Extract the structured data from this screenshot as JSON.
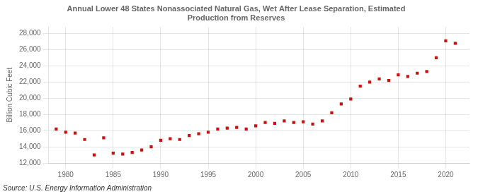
{
  "chart_data": {
    "type": "scatter",
    "title": [
      "Annual Lower 48 States Nonassociated Natural Gas, Wet After Lease Separation, Estimated",
      "Production from Reserves"
    ],
    "ylabel": "Billion Cubic Feet",
    "source": "Source: U.S. Energy Information Administration",
    "x": [
      1979,
      1980,
      1981,
      1982,
      1983,
      1984,
      1985,
      1986,
      1987,
      1988,
      1989,
      1990,
      1991,
      1992,
      1993,
      1994,
      1995,
      1996,
      1997,
      1998,
      1999,
      2000,
      2001,
      2002,
      2003,
      2004,
      2005,
      2006,
      2007,
      2008,
      2009,
      2010,
      2011,
      2012,
      2013,
      2014,
      2015,
      2016,
      2017,
      2018,
      2019,
      2020,
      2021
    ],
    "values": [
      16200,
      15800,
      15700,
      14900,
      13000,
      15100,
      13200,
      13100,
      13300,
      13600,
      14000,
      14800,
      15000,
      14900,
      15400,
      15600,
      15800,
      16200,
      16300,
      16400,
      16200,
      16600,
      17000,
      16900,
      17200,
      17000,
      17100,
      16800,
      17200,
      18200,
      19300,
      19900,
      21500,
      22000,
      22400,
      22200,
      22900,
      22700,
      23100,
      23300,
      25000,
      27100,
      26800
    ],
    "color": "#cc1111",
    "marker": "square",
    "xlim": [
      1978.2,
      2022.5
    ],
    "xticks": [
      1980,
      1985,
      1990,
      1995,
      2000,
      2005,
      2010,
      2015,
      2020
    ],
    "ylim": [
      12000,
      28800
    ],
    "yticks": [
      {
        "value": 12000,
        "label": "12,000"
      },
      {
        "value": 14000,
        "label": "14,000"
      },
      {
        "value": 16000,
        "label": "16,000"
      },
      {
        "value": 18000,
        "label": "18,000"
      },
      {
        "value": 20000,
        "label": "20,000"
      },
      {
        "value": 22000,
        "label": "22,000"
      },
      {
        "value": 24000,
        "label": "24,000"
      },
      {
        "value": 26000,
        "label": "26,000"
      },
      {
        "value": 28000,
        "label": "28,000"
      }
    ],
    "grid": true
  }
}
